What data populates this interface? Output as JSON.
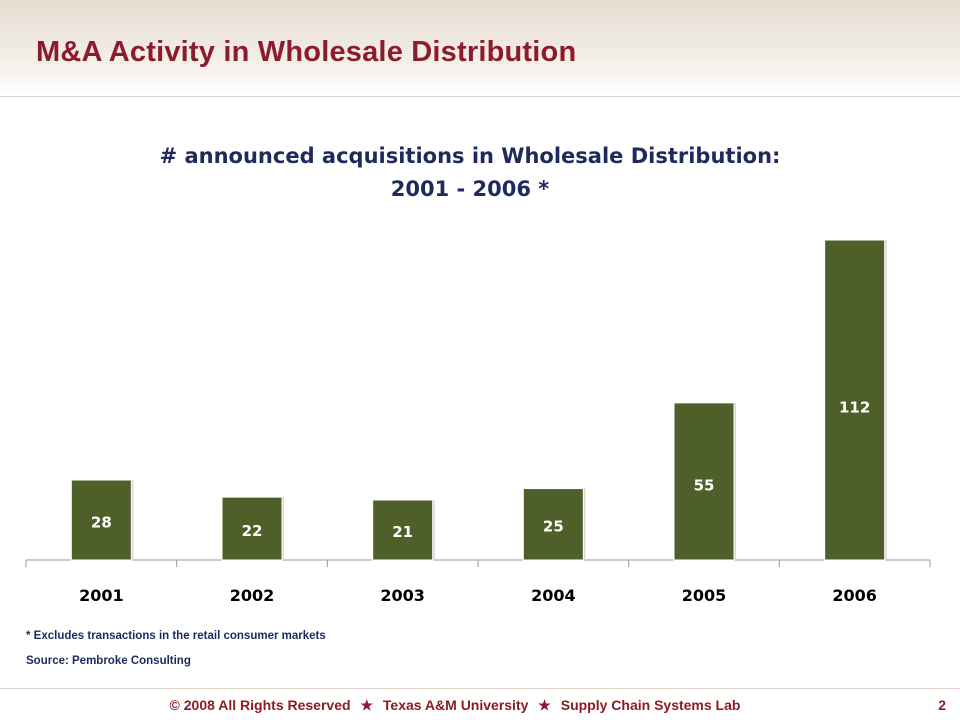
{
  "slide": {
    "title": "M&A Activity in Wholesale Distribution",
    "page_number": "2"
  },
  "footnotes": {
    "note": "* Excludes transactions in the retail consumer markets",
    "source": "Source: Pembroke Consulting"
  },
  "footer": {
    "copyright_symbol": "©",
    "copyright": "2008 All Rights Reserved",
    "university": "Texas A&M University",
    "lab": "Supply Chain Systems Lab",
    "separator": "★"
  },
  "colors": {
    "title": "#8c1b2b",
    "chart_title": "#1f2a5c",
    "bar": "#4e5f2a",
    "bar_label": "#ffffff"
  },
  "chart_data": {
    "type": "bar",
    "title_lines": [
      "# announced acquisitions in Wholesale Distribution:",
      "2001 - 2006 *"
    ],
    "categories": [
      "2001",
      "2002",
      "2003",
      "2004",
      "2005",
      "2006"
    ],
    "values": [
      28,
      22,
      21,
      25,
      55,
      112
    ],
    "ylim": [
      0,
      120
    ],
    "grid": false,
    "legend": "none",
    "data_labels": "inside-bar"
  }
}
